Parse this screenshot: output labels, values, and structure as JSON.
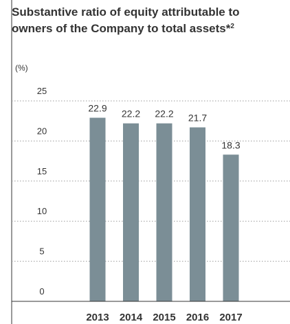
{
  "chart_data": {
    "type": "bar",
    "title_lines": [
      "Substantive ratio of equity attributable to",
      "owners of the Company to total assets*"
    ],
    "title_superscript": "2",
    "unit_label": "(%)",
    "categories": [
      "2013",
      "2014",
      "2015",
      "2016",
      "2017"
    ],
    "values": [
      22.9,
      22.2,
      22.2,
      21.7,
      18.3
    ],
    "value_labels": [
      "22.9",
      "22.2",
      "22.2",
      "21.7",
      "18.3"
    ],
    "y_ticks": [
      "0",
      "5",
      "10",
      "15",
      "20",
      "25"
    ],
    "ylim": [
      0,
      25
    ],
    "grid": true,
    "legend": "none",
    "bar_color": "#7b8e96"
  }
}
